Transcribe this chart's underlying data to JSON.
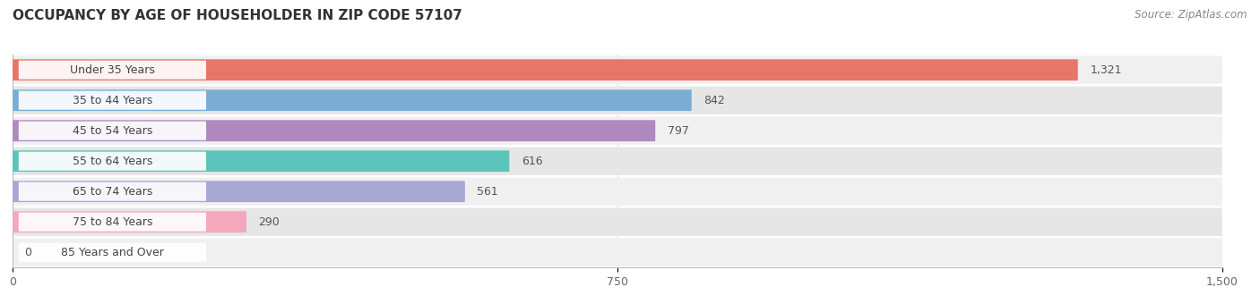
{
  "title": "OCCUPANCY BY AGE OF HOUSEHOLDER IN ZIP CODE 57107",
  "source": "Source: ZipAtlas.com",
  "categories": [
    "Under 35 Years",
    "35 to 44 Years",
    "45 to 54 Years",
    "55 to 64 Years",
    "65 to 74 Years",
    "75 to 84 Years",
    "85 Years and Over"
  ],
  "values": [
    1321,
    842,
    797,
    616,
    561,
    290,
    0
  ],
  "bar_colors": [
    "#E8756A",
    "#7BADD4",
    "#B08ABF",
    "#5DC4BB",
    "#A9A8D4",
    "#F4A8BB",
    "#F5C9A0"
  ],
  "row_bg_color_odd": "#F2F2F2",
  "row_bg_color_even": "#E8E8E8",
  "xlim_max": 1500,
  "xticks": [
    0,
    750,
    1500
  ],
  "title_fontsize": 11,
  "label_fontsize": 9,
  "value_fontsize": 9,
  "source_fontsize": 8.5,
  "background_color": "#FFFFFF",
  "bar_height": 0.7
}
